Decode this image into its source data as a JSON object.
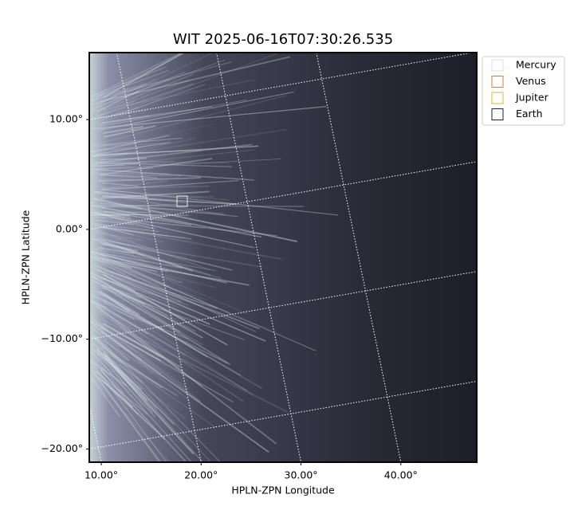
{
  "chart_data": {
    "type": "image",
    "title": "WIT 2025-06-16T07:30:26.535",
    "x_label": "HPLN-ZPN Longitude",
    "y_label": "HPLN-ZPN Latitude",
    "xlim": [
      8.8,
      47.6
    ],
    "ylim": [
      -21.2,
      16.1
    ],
    "xticks": [
      {
        "value": 10,
        "label": "10.00°"
      },
      {
        "value": 20,
        "label": "20.00°"
      },
      {
        "value": 30,
        "label": "30.00°"
      },
      {
        "value": 40,
        "label": "40.00°"
      }
    ],
    "yticks": [
      {
        "value": -20,
        "label": "−20.00°"
      },
      {
        "value": -10,
        "label": "−10.00°"
      },
      {
        "value": 0,
        "label": "0.00°"
      },
      {
        "value": 10,
        "label": "10.00°"
      }
    ],
    "grid": true,
    "legend_position": "upper right",
    "series": [
      {
        "name": "Mercury",
        "color": "#dddddd"
      },
      {
        "name": "Venus",
        "color": "#e07a3a"
      },
      {
        "name": "Jupiter",
        "color": "#e6b422"
      },
      {
        "name": "Earth",
        "color": "#1a1a6e"
      }
    ]
  }
}
